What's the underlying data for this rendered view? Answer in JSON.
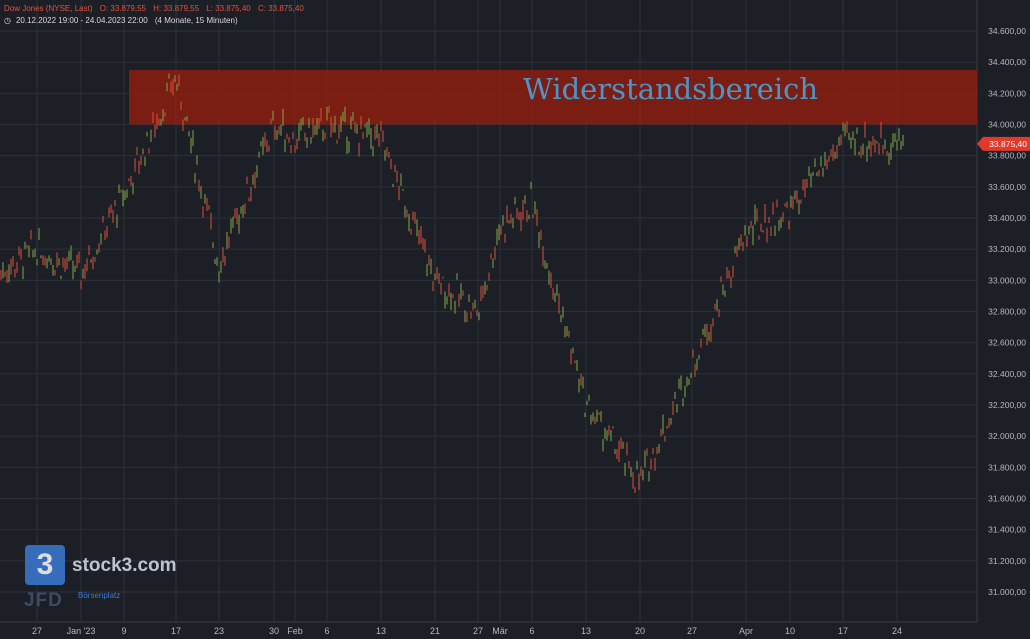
{
  "header": {
    "instrument": "Dow Jones (NYSE, Last)",
    "open": "O: 33.879,55",
    "high": "H: 33.879,55",
    "low": "L: 33.875,40",
    "close": "C: 33.875,40",
    "range": "20.12.2022 19:00 - 24.04.2023 22:00",
    "span": "(4 Monate, 15 Minuten)"
  },
  "colors": {
    "background": "#1c1f26",
    "grid": "#2c3038",
    "up": "#7fa84a",
    "down": "#d9503b",
    "zone": "#8b1f12",
    "zone_text": "#4d95c9",
    "price_tag": "#e23a2a",
    "axis_text": "#b5b8bf"
  },
  "chart_data": {
    "type": "line",
    "y_ticks": [
      "34.600,00",
      "34.400,00",
      "34.200,00",
      "34.000,00",
      "33.800,00",
      "33.600,00",
      "33.400,00",
      "33.200,00",
      "33.000,00",
      "32.800,00",
      "32.600,00",
      "32.400,00",
      "32.200,00",
      "32.000,00",
      "31.800,00",
      "31.600,00",
      "31.400,00",
      "31.200,00",
      "31.000,00"
    ],
    "ylim": [
      30950,
      34720
    ],
    "x_tick_labels": [
      "27",
      "Jan '23",
      "9",
      "17",
      "23",
      "30",
      "Feb",
      "6",
      "13",
      "21",
      "27",
      "Mär",
      "6",
      "13",
      "20",
      "27",
      "Apr",
      "10",
      "17",
      "24"
    ],
    "last_price": "33.875,40",
    "last_value": 33875.4,
    "zone": {
      "label": "Widerstandsbereich",
      "from": 34000,
      "to": 34350
    },
    "series": [
      {
        "x": [
          "27",
          "Jan '23",
          "9",
          "17",
          "23",
          "30",
          "Feb",
          "6",
          "13",
          "21",
          "27",
          "Mär",
          "6",
          "13",
          "20",
          "27",
          "Apr",
          "10",
          "17",
          "24"
        ],
        "values": [
          33200,
          33050,
          33550,
          34300,
          33100,
          34000,
          33900,
          34000,
          33900,
          33000,
          32800,
          33350,
          33500,
          32200,
          31700,
          32450,
          33300,
          33450,
          33900,
          33875
        ]
      }
    ]
  },
  "logos": {
    "brand_glyph": "3",
    "brand_text": "stock3.com",
    "broker": "JFD",
    "broker_sub": "Börsenplatz"
  }
}
